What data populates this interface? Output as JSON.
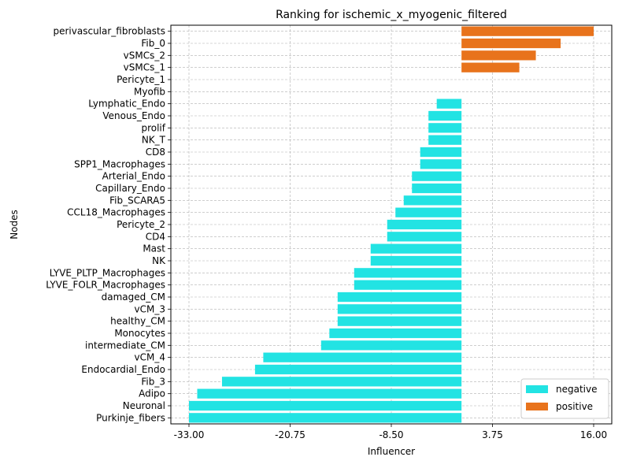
{
  "chart_data": {
    "type": "bar",
    "orientation": "horizontal",
    "title": "Ranking for ischemic_x_myogenic_filtered",
    "xlabel": "Influencer",
    "ylabel": "Nodes",
    "xlim": [
      -33.0,
      16.0
    ],
    "xticks": [
      "-33.00",
      "-20.75",
      "-8.50",
      "3.75",
      "16.00"
    ],
    "grid": true,
    "legend_position": "bottom-right",
    "categories": [
      "perivascular_fibroblasts",
      "Fib_0",
      "vSMCs_2",
      "vSMCs_1",
      "Pericyte_1",
      "Myofib",
      "Lymphatic_Endo",
      "Venous_Endo",
      "prolif",
      "NK_T",
      "CD8",
      "SPP1_Macrophages",
      "Arterial_Endo",
      "Capillary_Endo",
      "Fib_SCARA5",
      "CCL18_Macrophages",
      "Pericyte_2",
      "CD4",
      "Mast",
      "NK",
      "LYVE_PLTP_Macrophages",
      "LYVE_FOLR_Macrophages",
      "damaged_CM",
      "vCM_3",
      "healthy_CM",
      "Monocytes",
      "intermediate_CM",
      "vCM_4",
      "Endocardial_Endo",
      "Fib_3",
      "Adipo",
      "Neuronal",
      "Purkinje_fibers"
    ],
    "values": [
      16.0,
      12.0,
      9.0,
      7.0,
      0.0,
      0.0,
      -3.0,
      -4.0,
      -4.0,
      -4.0,
      -5.0,
      -5.0,
      -6.0,
      -6.0,
      -7.0,
      -8.0,
      -9.0,
      -9.0,
      -11.0,
      -11.0,
      -13.0,
      -13.0,
      -15.0,
      -15.0,
      -15.0,
      -16.0,
      -17.0,
      -24.0,
      -25.0,
      -29.0,
      -32.0,
      -33.0,
      -33.0
    ],
    "series": [
      {
        "name": "negative",
        "color": "#22e3e3"
      },
      {
        "name": "positive",
        "color": "#e8731c"
      }
    ]
  }
}
